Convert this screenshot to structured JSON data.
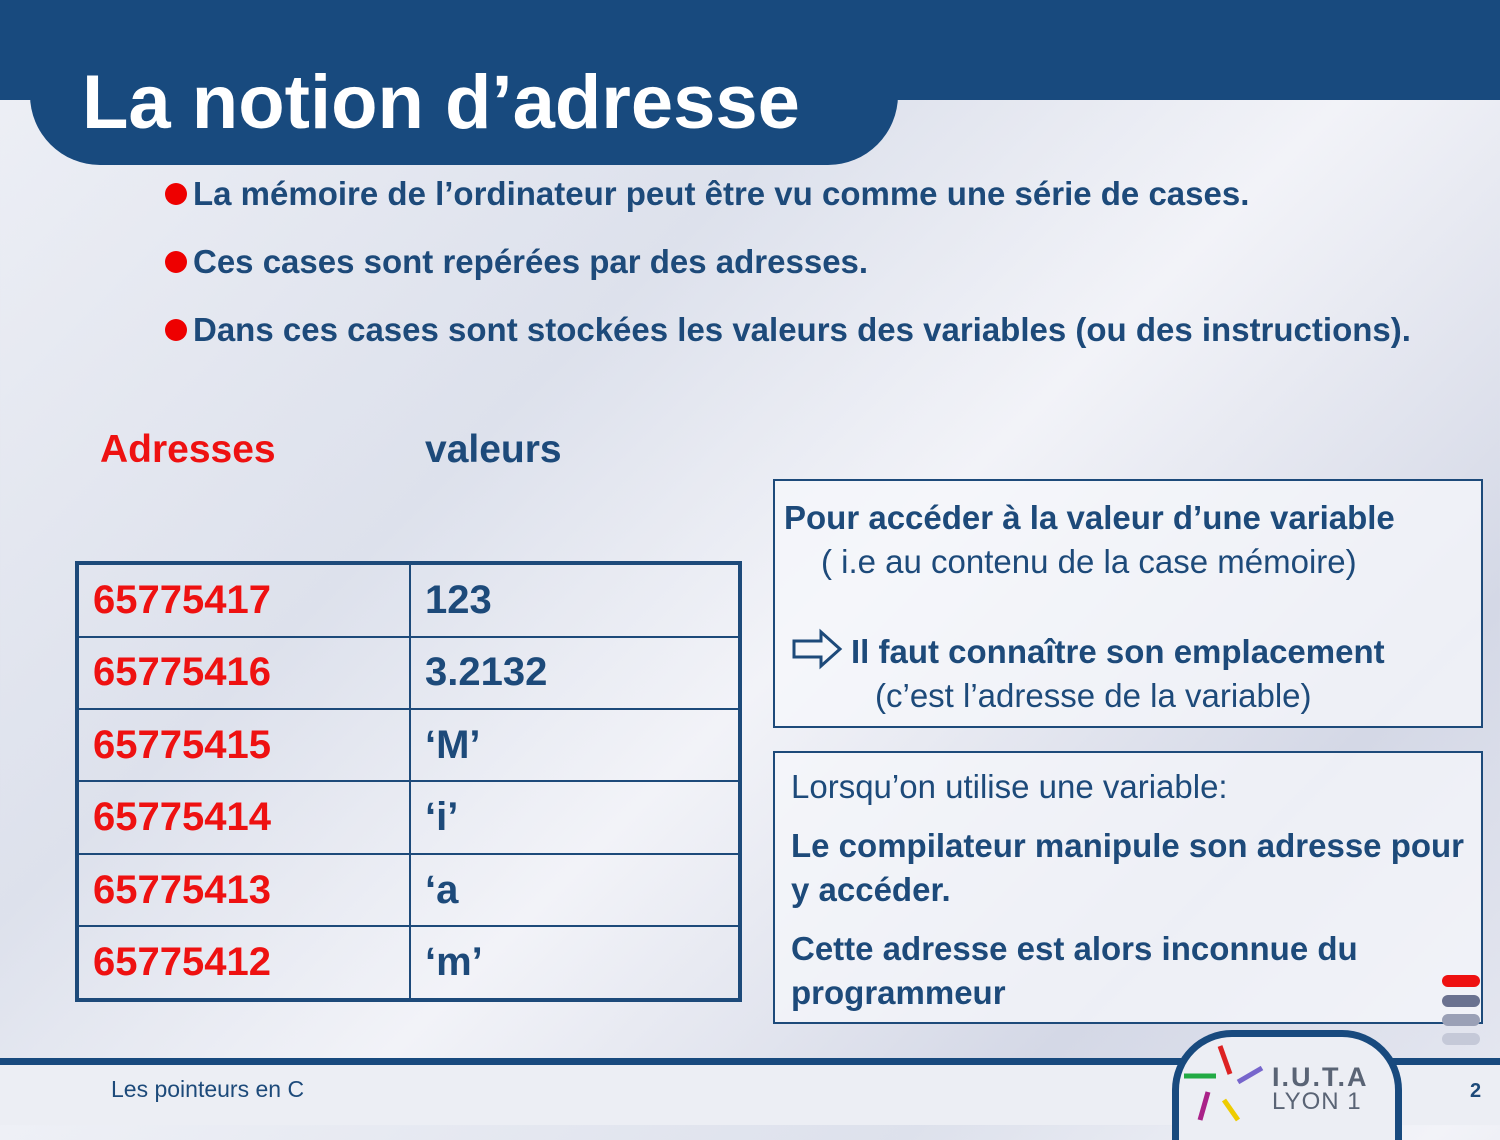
{
  "slide": {
    "title": "La notion d’adresse",
    "bullets": [
      "La mémoire de l’ordinateur peut être vu comme une série de cases.",
      "Ces cases sont repérées par des adresses.",
      "Dans ces cases sont stockées les valeurs des variables (ou des instructions)."
    ]
  },
  "memory_table": {
    "headers": {
      "address": "Adresses",
      "value": "valeurs"
    },
    "rows": [
      {
        "address": "65775417",
        "value": "123"
      },
      {
        "address": "65775416",
        "value": "3.2132"
      },
      {
        "address": "65775415",
        "value": "‘M’"
      },
      {
        "address": "65775414",
        "value": "‘i’"
      },
      {
        "address": "65775413",
        "value": "‘a"
      },
      {
        "address": "65775412",
        "value": "‘m’"
      }
    ]
  },
  "access_box": {
    "line1": "Pour accéder à la valeur d’une variable",
    "line2": "( i.e au contenu de la case mémoire)",
    "line3": "Il faut connaître son emplacement",
    "line4": "(c’est l’adresse de la variable)",
    "arrow_icon": "right-arrow-outline-icon"
  },
  "compiler_box": {
    "line1": "Lorsqu’on utilise une variable:",
    "line2": "Le compilateur manipule son adresse pour y accéder.",
    "line3": "Cette adresse est alors inconnue du programmeur"
  },
  "footer": {
    "text": "Les pointeurs en C",
    "page_number": "2",
    "logo_line1": "I.U.T.A",
    "logo_line2": "LYON 1"
  },
  "colors": {
    "primary": "#184a7e",
    "text": "#1d4a7a",
    "accent_red": "#ee1111",
    "bullet_red": "#ee0000"
  }
}
